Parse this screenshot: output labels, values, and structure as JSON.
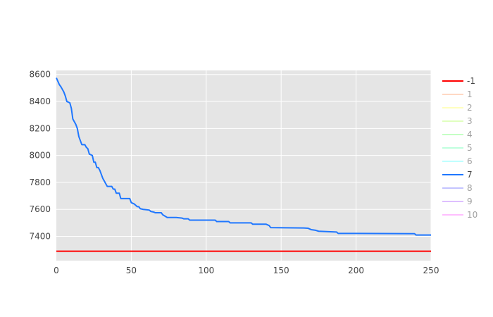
{
  "chart_data": {
    "type": "line",
    "title": "",
    "xlabel": "",
    "ylabel": "",
    "xlim": [
      0,
      250
    ],
    "ylim": [
      7220,
      8630
    ],
    "x_ticks": [
      0,
      50,
      100,
      150,
      200,
      250
    ],
    "y_ticks": [
      7400,
      7600,
      7800,
      8000,
      8200,
      8400,
      8600
    ],
    "grid": true,
    "background": "#e5e5e5",
    "legend_position": "right",
    "series": [
      {
        "name": "-1",
        "color": "#ff0000",
        "visible": true,
        "points": [
          [
            0,
            7290
          ],
          [
            250,
            7290
          ]
        ]
      },
      {
        "name": "1",
        "color": "#ffb38a",
        "visible": false,
        "points": []
      },
      {
        "name": "2",
        "color": "#ffff80",
        "visible": false,
        "points": []
      },
      {
        "name": "3",
        "color": "#c2ff80",
        "visible": false,
        "points": []
      },
      {
        "name": "4",
        "color": "#8aff8a",
        "visible": false,
        "points": []
      },
      {
        "name": "5",
        "color": "#80ffbf",
        "visible": false,
        "points": []
      },
      {
        "name": "6",
        "color": "#80ffff",
        "visible": false,
        "points": []
      },
      {
        "name": "7",
        "color": "#1f77ff",
        "visible": true,
        "points": [
          [
            0,
            8575
          ],
          [
            1,
            8550
          ],
          [
            2,
            8525
          ],
          [
            3,
            8510
          ],
          [
            4,
            8490
          ],
          [
            5,
            8470
          ],
          [
            6,
            8440
          ],
          [
            7,
            8400
          ],
          [
            9,
            8390
          ],
          [
            10,
            8350
          ],
          [
            11,
            8270
          ],
          [
            12,
            8250
          ],
          [
            13,
            8230
          ],
          [
            14,
            8200
          ],
          [
            15,
            8140
          ],
          [
            17,
            8080
          ],
          [
            19,
            8080
          ],
          [
            20,
            8060
          ],
          [
            21,
            8050
          ],
          [
            22,
            8010
          ],
          [
            24,
            8000
          ],
          [
            25,
            7950
          ],
          [
            26,
            7950
          ],
          [
            27,
            7910
          ],
          [
            28,
            7910
          ],
          [
            29,
            7890
          ],
          [
            30,
            7860
          ],
          [
            31,
            7830
          ],
          [
            32,
            7810
          ],
          [
            33,
            7790
          ],
          [
            34,
            7770
          ],
          [
            37,
            7770
          ],
          [
            38,
            7750
          ],
          [
            39,
            7750
          ],
          [
            40,
            7720
          ],
          [
            42,
            7720
          ],
          [
            43,
            7680
          ],
          [
            44,
            7680
          ],
          [
            49,
            7680
          ],
          [
            50,
            7650
          ],
          [
            52,
            7640
          ],
          [
            54,
            7620
          ],
          [
            55,
            7620
          ],
          [
            56,
            7605
          ],
          [
            58,
            7600
          ],
          [
            62,
            7595
          ],
          [
            63,
            7585
          ],
          [
            65,
            7580
          ],
          [
            66,
            7575
          ],
          [
            70,
            7575
          ],
          [
            71,
            7560
          ],
          [
            74,
            7540
          ],
          [
            80,
            7540
          ],
          [
            84,
            7535
          ],
          [
            85,
            7530
          ],
          [
            88,
            7530
          ],
          [
            89,
            7520
          ],
          [
            106,
            7520
          ],
          [
            107,
            7510
          ],
          [
            115,
            7510
          ],
          [
            116,
            7500
          ],
          [
            130,
            7500
          ],
          [
            131,
            7490
          ],
          [
            140,
            7490
          ],
          [
            142,
            7480
          ],
          [
            143,
            7465
          ],
          [
            165,
            7462
          ],
          [
            168,
            7460
          ],
          [
            170,
            7450
          ],
          [
            173,
            7445
          ],
          [
            175,
            7438
          ],
          [
            187,
            7432
          ],
          [
            188,
            7422
          ],
          [
            200,
            7422
          ],
          [
            239,
            7420
          ],
          [
            240,
            7410
          ],
          [
            250,
            7410
          ]
        ]
      },
      {
        "name": "8",
        "color": "#8a8aff",
        "visible": false,
        "points": []
      },
      {
        "name": "9",
        "color": "#bf80ff",
        "visible": false,
        "points": []
      },
      {
        "name": "10",
        "color": "#ff80ff",
        "visible": false,
        "points": []
      }
    ]
  }
}
